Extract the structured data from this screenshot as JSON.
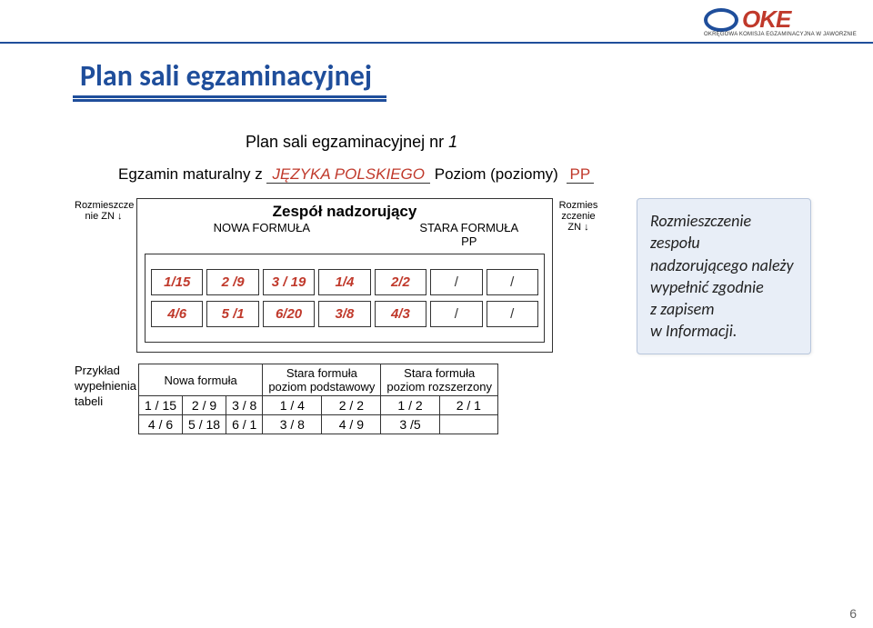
{
  "logo": {
    "text": "OKE",
    "sub": "OKRĘGOWA KOMISJA EGZAMINACYJNA W JAWORZNIE",
    "ellipse_color": "#1f4e9b",
    "text_color": "#c0392b"
  },
  "title": "Plan sali egzaminacyjnej",
  "subtitle_prefix": "Plan sali egzaminacyjnej nr ",
  "subtitle_num": "1",
  "exam_label": "Egzamin maturalny z ",
  "exam_subject": "JĘZYKA POLSKIEGO",
  "poziom_label": " Poziom (poziomy) ",
  "poziom_val": "PP",
  "left_small": "Rozmieszcze\nnie ZN ↓",
  "right_small": "Rozmies\nzczenie\nZN ↓",
  "box_title": "Zespół nadzorujący",
  "box_sub_left": "NOWA FORMUŁA",
  "box_sub_right": "STARA FORMUŁA\nPP",
  "row1": [
    "1/15",
    "2 /9",
    "3 / 19",
    "1/4",
    "2/2",
    "/",
    "/"
  ],
  "row2": [
    "4/6",
    "5 /1",
    "6/20",
    "3/8",
    "4/3",
    "/",
    "/"
  ],
  "ex_label": "Przykład\nwypełnienia\ntabeli",
  "ex_headers": [
    "Nowa formuła",
    "Stara formuła\npoziom podstawowy",
    "Stara formuła\npoziom rozszerzony"
  ],
  "ex_header_spans": [
    3,
    2,
    2
  ],
  "ex_rows": [
    [
      "1 / 15",
      "2 /  9",
      "3 /  8",
      "1 / 4",
      "2  / 2",
      "1 / 2",
      "2 / 1"
    ],
    [
      "4 / 6",
      "5 / 18",
      "6 / 1",
      "3 / 8",
      "4  / 9",
      "3 /5",
      ""
    ]
  ],
  "callout": "Rozmieszczenie zespołu nadzorującego należy wypełnić zgodnie\nz zapisem\nw Informacji.",
  "pagenum": "6",
  "colors": {
    "accent_blue": "#1f4e9b",
    "accent_red": "#c0392b",
    "callout_bg": "#e8eef7"
  }
}
